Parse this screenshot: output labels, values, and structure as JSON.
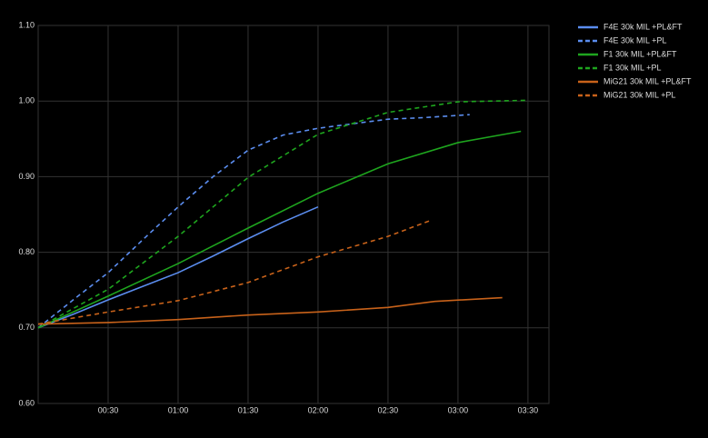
{
  "chart_data": {
    "type": "line",
    "xlim": [
      0,
      219
    ],
    "ylim": [
      0.6,
      1.1
    ],
    "xticks": [
      {
        "value": 30,
        "label": "00:30"
      },
      {
        "value": 60,
        "label": "01:00"
      },
      {
        "value": 90,
        "label": "01:30"
      },
      {
        "value": 120,
        "label": "02:00"
      },
      {
        "value": 150,
        "label": "02:30"
      },
      {
        "value": 180,
        "label": "03:00"
      },
      {
        "value": 210,
        "label": "03:30"
      }
    ],
    "yticks": [
      {
        "value": 0.6,
        "label": "0.60"
      },
      {
        "value": 0.7,
        "label": "0.70"
      },
      {
        "value": 0.8,
        "label": "0.80"
      },
      {
        "value": 0.9,
        "label": "0.90"
      },
      {
        "value": 1.0,
        "label": "1.00"
      },
      {
        "value": 1.1,
        "label": "1.10"
      }
    ],
    "grid": true,
    "legend": "right",
    "series": [
      {
        "name": "F4E 30k MIL +PL&FT",
        "color": "#5b8def",
        "line_style": "solid",
        "x": [
          0,
          15,
          30,
          45,
          60,
          75,
          90,
          105,
          120
        ],
        "values": [
          0.7,
          0.718,
          0.737,
          0.755,
          0.773,
          0.795,
          0.818,
          0.84,
          0.86
        ]
      },
      {
        "name": "F4E 30k MIL +PL",
        "color": "#5b8def",
        "line_style": "dashed",
        "x": [
          0,
          15,
          30,
          45,
          60,
          75,
          90,
          105,
          120,
          135,
          150,
          165,
          185
        ],
        "values": [
          0.7,
          0.737,
          0.773,
          0.817,
          0.86,
          0.9,
          0.935,
          0.955,
          0.964,
          0.97,
          0.976,
          0.978,
          0.982
        ]
      },
      {
        "name": "F1 30k MIL +PL&FT",
        "color": "#1ea51e",
        "line_style": "solid",
        "x": [
          0,
          30,
          60,
          90,
          120,
          150,
          180,
          207
        ],
        "values": [
          0.7,
          0.742,
          0.785,
          0.832,
          0.878,
          0.917,
          0.945,
          0.96
        ]
      },
      {
        "name": "F1 30k MIL +PL",
        "color": "#1ea51e",
        "line_style": "dashed",
        "x": [
          0,
          30,
          60,
          90,
          120,
          150,
          180,
          210
        ],
        "values": [
          0.7,
          0.751,
          0.821,
          0.899,
          0.956,
          0.985,
          0.999,
          1.001
        ]
      },
      {
        "name": "MiG21 30k MIL +PL&FT",
        "color": "#c8621a",
        "line_style": "solid",
        "x": [
          0,
          30,
          60,
          90,
          120,
          150,
          170,
          199
        ],
        "values": [
          0.705,
          0.707,
          0.711,
          0.717,
          0.721,
          0.727,
          0.735,
          0.74
        ]
      },
      {
        "name": "MiG21 30k MIL +PL",
        "color": "#c8621a",
        "line_style": "dashed",
        "x": [
          0,
          30,
          60,
          90,
          120,
          150,
          169
        ],
        "values": [
          0.705,
          0.721,
          0.736,
          0.76,
          0.794,
          0.821,
          0.843
        ]
      }
    ]
  }
}
